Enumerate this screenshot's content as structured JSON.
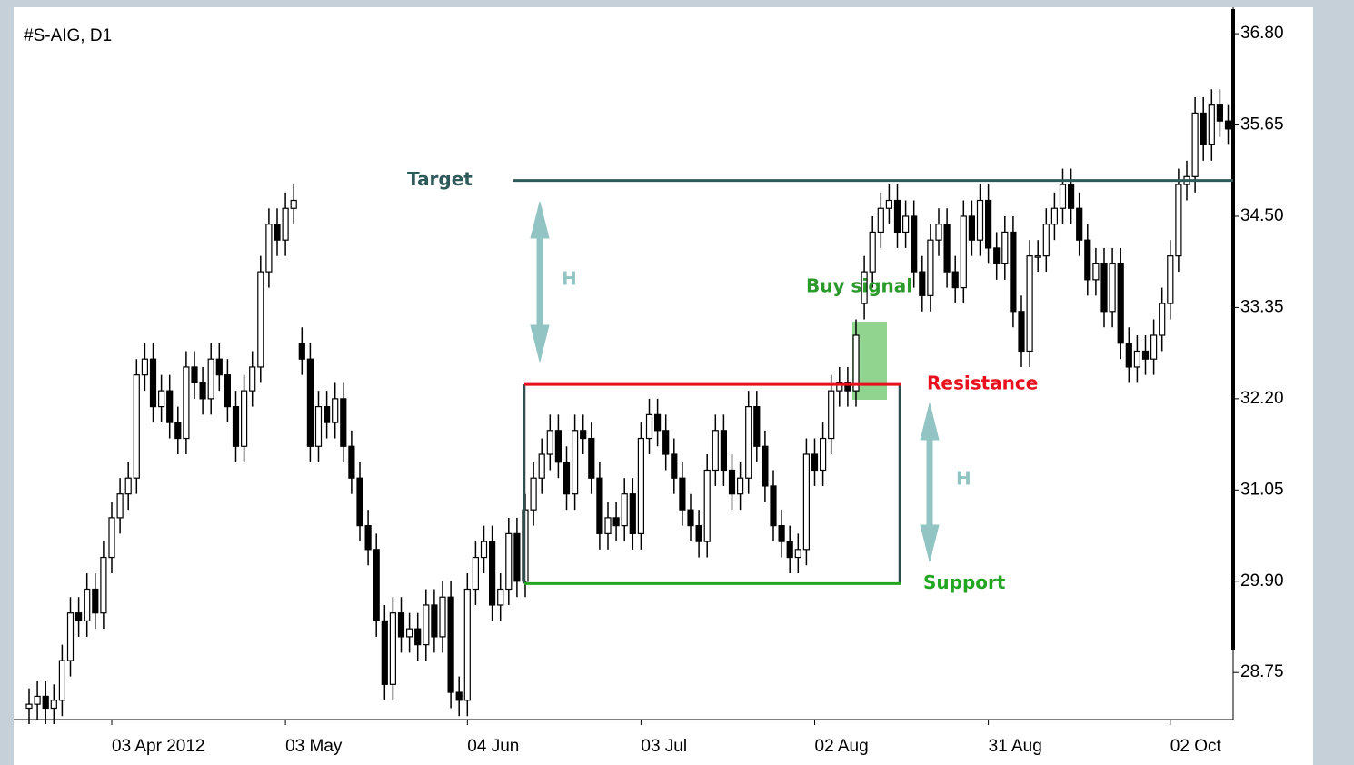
{
  "chart_data": {
    "type": "candlestick",
    "title": "#S-AIG, D1",
    "categories": [
      null,
      null,
      null,
      null,
      null,
      null,
      null,
      null,
      null,
      null,
      "03 Apr 2012",
      null,
      null,
      null,
      null,
      null,
      null,
      null,
      null,
      null,
      null,
      null,
      null,
      null,
      null,
      null,
      null,
      null,
      null,
      null,
      null,
      "03 May",
      null,
      null,
      null,
      null,
      null,
      null,
      null,
      null,
      null,
      null,
      null,
      null,
      null,
      null,
      null,
      null,
      null,
      null,
      null,
      null,
      null,
      "04 Jun",
      null,
      null,
      null,
      null,
      null,
      null,
      null,
      null,
      null,
      null,
      null,
      null,
      null,
      null,
      null,
      null,
      null,
      null,
      null,
      null,
      "03 Jul",
      null,
      null,
      null,
      null,
      null,
      null,
      null,
      null,
      null,
      null,
      null,
      null,
      null,
      null,
      null,
      null,
      null,
      null,
      null,
      null,
      "02 Aug",
      null,
      null,
      null,
      null,
      null,
      null,
      null,
      null,
      null,
      null,
      null,
      null,
      null,
      null,
      null,
      null,
      null,
      null,
      null,
      null,
      "31 Aug",
      null,
      null,
      null,
      null,
      null,
      null,
      null,
      null,
      null,
      null,
      null,
      null,
      null,
      null,
      null,
      null,
      null,
      null,
      null,
      null,
      null,
      "02 Oct",
      null,
      null,
      null,
      null,
      null,
      null,
      null
    ],
    "open": [
      28.3,
      28.35,
      28.45,
      28.3,
      28.4,
      28.9,
      29.5,
      29.4,
      29.8,
      29.5,
      30.2,
      30.7,
      31.0,
      31.2,
      32.5,
      32.7,
      32.1,
      32.3,
      31.9,
      31.7,
      32.6,
      32.4,
      32.2,
      32.7,
      32.5,
      32.1,
      31.6,
      32.3,
      32.6,
      33.8,
      34.4,
      34.2,
      34.6,
      32.9,
      32.7,
      31.6,
      32.1,
      31.9,
      32.2,
      31.6,
      31.2,
      30.6,
      30.3,
      29.4,
      28.6,
      29.5,
      29.2,
      29.3,
      29.1,
      29.6,
      29.2,
      29.7,
      28.5,
      28.4,
      29.8,
      30.2,
      30.4,
      29.6,
      29.8,
      30.5,
      29.9,
      30.8,
      31.2,
      31.5,
      31.8,
      31.4,
      31.0,
      31.8,
      31.7,
      31.2,
      30.5,
      30.7,
      30.6,
      31.0,
      30.5,
      31.7,
      32.0,
      31.8,
      31.5,
      31.2,
      30.8,
      30.6,
      30.4,
      31.3,
      31.8,
      31.3,
      31.0,
      31.2,
      32.1,
      31.6,
      31.1,
      30.6,
      30.4,
      30.2,
      30.3,
      31.5,
      31.3,
      31.7,
      32.3,
      32.4,
      32.3,
      33.4,
      33.8,
      34.3,
      34.6,
      34.7,
      34.3,
      34.5,
      33.8,
      33.5,
      34.2,
      34.4,
      33.8,
      33.6,
      34.5,
      34.2,
      34.7,
      34.1,
      33.9,
      34.3,
      33.3,
      32.8,
      34.0,
      34.0,
      34.4,
      34.6,
      34.9,
      34.6,
      34.2,
      33.7,
      33.9,
      33.3,
      33.9,
      32.9,
      32.6,
      32.8,
      32.7,
      33.0,
      33.4,
      34.0,
      34.9,
      35.0,
      35.8,
      35.4,
      35.9,
      35.7
    ],
    "high": [
      28.55,
      28.65,
      28.65,
      28.6,
      29.1,
      29.7,
      29.7,
      30.0,
      30.0,
      30.4,
      30.9,
      31.2,
      31.4,
      32.7,
      32.9,
      32.9,
      32.5,
      32.5,
      32.1,
      32.8,
      32.8,
      32.6,
      32.9,
      32.9,
      32.7,
      32.3,
      32.5,
      32.8,
      34.0,
      34.6,
      34.6,
      34.8,
      34.9,
      33.1,
      32.9,
      32.3,
      32.3,
      32.4,
      32.4,
      31.8,
      31.4,
      30.8,
      30.5,
      29.6,
      29.7,
      29.7,
      29.5,
      29.5,
      29.8,
      29.8,
      29.9,
      29.9,
      28.7,
      30.0,
      30.4,
      30.6,
      30.6,
      30.0,
      30.7,
      30.7,
      31.0,
      31.4,
      31.7,
      32.0,
      32.0,
      31.6,
      32.0,
      32.0,
      31.9,
      31.4,
      30.9,
      30.9,
      31.2,
      31.2,
      31.9,
      32.2,
      32.2,
      32.0,
      31.7,
      31.4,
      31.0,
      30.8,
      31.5,
      32.0,
      32.0,
      31.5,
      31.4,
      32.3,
      32.3,
      31.8,
      31.3,
      30.8,
      30.6,
      30.5,
      31.7,
      31.7,
      31.9,
      32.5,
      32.6,
      32.6,
      33.2,
      34.0,
      34.5,
      34.8,
      34.9,
      34.9,
      34.7,
      34.7,
      34.0,
      34.4,
      34.6,
      34.6,
      34.0,
      34.7,
      34.7,
      34.9,
      34.9,
      34.3,
      34.5,
      34.5,
      33.5,
      34.2,
      34.2,
      34.6,
      34.8,
      35.1,
      35.1,
      34.8,
      34.4,
      34.1,
      34.1,
      34.1,
      34.1,
      33.1,
      33.0,
      33.0,
      33.2,
      33.6,
      34.2,
      35.1,
      35.2,
      36.0,
      36.0,
      36.1,
      36.1,
      35.9
    ],
    "low": [
      28.1,
      28.15,
      28.1,
      28.1,
      28.2,
      28.7,
      29.2,
      29.2,
      29.3,
      29.3,
      30.0,
      30.5,
      30.8,
      31.0,
      32.3,
      31.9,
      31.9,
      31.7,
      31.5,
      31.5,
      32.2,
      32.0,
      32.0,
      32.3,
      31.9,
      31.4,
      31.4,
      32.1,
      32.4,
      33.6,
      34.0,
      34.0,
      34.4,
      32.5,
      31.4,
      31.4,
      31.7,
      31.7,
      31.4,
      31.0,
      30.4,
      30.1,
      29.2,
      28.4,
      28.4,
      29.0,
      29.0,
      28.9,
      28.9,
      29.0,
      29.0,
      28.3,
      28.2,
      28.2,
      29.6,
      30.0,
      29.4,
      29.4,
      29.6,
      29.7,
      29.7,
      30.6,
      31.0,
      31.3,
      31.2,
      30.8,
      30.8,
      31.5,
      31.0,
      30.3,
      30.3,
      30.4,
      30.4,
      30.3,
      30.3,
      31.5,
      31.6,
      31.3,
      31.0,
      30.6,
      30.4,
      30.2,
      30.2,
      31.1,
      31.1,
      30.8,
      30.8,
      31.0,
      31.4,
      30.9,
      30.4,
      30.2,
      30.0,
      30.0,
      30.1,
      31.1,
      31.1,
      31.5,
      32.1,
      32.1,
      32.1,
      33.2,
      33.6,
      34.1,
      34.4,
      34.1,
      34.1,
      33.6,
      33.3,
      33.3,
      34.0,
      33.6,
      33.4,
      33.4,
      34.0,
      34.0,
      33.9,
      33.7,
      33.7,
      33.1,
      32.6,
      32.6,
      33.8,
      33.8,
      34.2,
      34.4,
      34.4,
      34.0,
      33.5,
      33.5,
      33.1,
      33.1,
      32.7,
      32.4,
      32.4,
      32.5,
      32.5,
      32.8,
      33.2,
      33.8,
      34.7,
      34.8,
      35.2,
      35.2,
      35.5,
      35.4
    ],
    "close": [
      28.35,
      28.45,
      28.3,
      28.4,
      28.9,
      29.5,
      29.4,
      29.8,
      29.5,
      30.2,
      30.7,
      31.0,
      31.2,
      32.5,
      32.7,
      32.1,
      32.3,
      31.9,
      31.7,
      32.6,
      32.4,
      32.2,
      32.7,
      32.5,
      32.1,
      31.6,
      32.3,
      32.6,
      33.8,
      34.4,
      34.2,
      34.6,
      34.7,
      32.7,
      31.6,
      32.1,
      31.9,
      32.2,
      31.6,
      31.2,
      30.6,
      30.3,
      29.4,
      28.6,
      29.5,
      29.2,
      29.3,
      29.1,
      29.6,
      29.2,
      29.7,
      28.5,
      28.4,
      29.8,
      30.2,
      30.4,
      29.6,
      29.8,
      30.5,
      29.9,
      30.8,
      31.2,
      31.5,
      31.8,
      31.4,
      31.0,
      31.8,
      31.7,
      31.2,
      30.5,
      30.7,
      30.6,
      31.0,
      30.5,
      31.7,
      32.0,
      31.8,
      31.5,
      31.2,
      30.8,
      30.6,
      30.4,
      31.3,
      31.8,
      31.3,
      31.0,
      31.2,
      32.1,
      31.6,
      31.1,
      30.6,
      30.4,
      30.2,
      30.3,
      31.5,
      31.3,
      31.7,
      32.3,
      32.4,
      32.3,
      33.0,
      33.8,
      34.3,
      34.6,
      34.7,
      34.3,
      34.5,
      33.8,
      33.5,
      34.2,
      34.4,
      33.8,
      33.6,
      34.5,
      34.2,
      34.7,
      34.1,
      33.9,
      34.3,
      33.3,
      32.8,
      34.0,
      34.0,
      34.4,
      34.6,
      34.9,
      34.6,
      34.2,
      33.7,
      33.9,
      33.3,
      33.9,
      32.9,
      32.6,
      32.8,
      32.7,
      33.0,
      33.4,
      34.0,
      34.9,
      35.0,
      35.8,
      35.4,
      35.9,
      35.7,
      35.6
    ],
    "ylim": [
      28.18,
      37.11
    ],
    "yticks": [
      28.75,
      {
        "value": 29.9,
        "label": "29.90"
      },
      31.05,
      {
        "value": 32.2,
        "label": "32.20"
      },
      33.35,
      {
        "value": 34.5,
        "label": "34.50"
      },
      35.65,
      {
        "value": 36.8,
        "label": "36.80"
      }
    ],
    "annotations": {
      "target": {
        "label": "Target",
        "value": 34.95,
        "color": "#2f5a5a"
      },
      "resistance": {
        "label": "Resistance",
        "value": 32.38,
        "color": "#e8101c"
      },
      "support": {
        "label": "Support",
        "value": 29.87,
        "color": "#22a622"
      },
      "buy_signal": {
        "label": "Buy signal",
        "color": "#2a9a2a"
      },
      "height_labels": [
        "H",
        "H"
      ]
    }
  }
}
